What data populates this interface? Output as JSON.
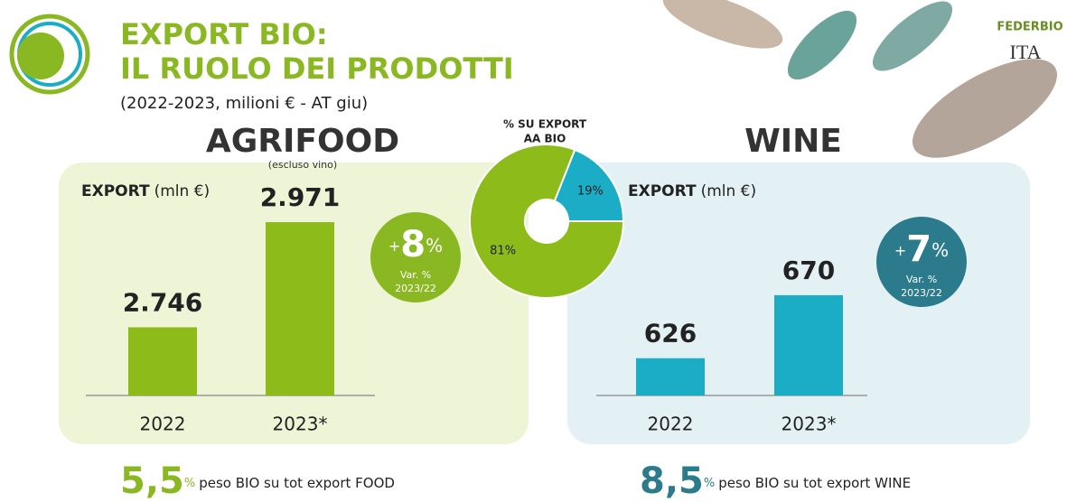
{
  "header": {
    "title_line1": "EXPORT BIO:",
    "title_line2": "IL RUOLO DEI PRODOTTI",
    "subtitle": "(2022-2023, milioni € - AT giu)",
    "logos": [
      "FEDERBIO",
      "ITA"
    ]
  },
  "chart_data": [
    {
      "type": "bar",
      "title": "AGRIFOOD",
      "subtitle": "(escluso vino)",
      "axis_label_bold": "EXPORT",
      "axis_label_unit": "(mln €)",
      "categories": [
        "2022",
        "2023*"
      ],
      "values": [
        2746,
        2971
      ],
      "value_labels": [
        "2.746",
        "2.971"
      ],
      "color": "#8cbb1a",
      "ylim": [
        2600,
        3060
      ],
      "change": {
        "sign": "+",
        "value": 8,
        "unit": "%",
        "label": "Var. %",
        "period": "2023/22",
        "color": "#8ab822"
      },
      "share": {
        "value": "5,5",
        "unit": "%",
        "text": "peso BIO su tot export FOOD",
        "color": "#8ab822"
      }
    },
    {
      "type": "pie",
      "title_line1": "% SU EXPORT",
      "title_line2": "AA BIO",
      "values": [
        81,
        19
      ],
      "value_labels": [
        "81%",
        "19%"
      ],
      "colors": [
        "#8cbb1a",
        "#1badc6"
      ]
    },
    {
      "type": "bar",
      "title": "WINE",
      "axis_label_bold": "EXPORT",
      "axis_label_unit": "(mln €)",
      "categories": [
        "2022",
        "2023*"
      ],
      "values": [
        626,
        670
      ],
      "value_labels": [
        "626",
        "670"
      ],
      "color": "#1badc6",
      "ylim": [
        600,
        750
      ],
      "change": {
        "sign": "+",
        "value": 7,
        "unit": "%",
        "label": "Var. %",
        "period": "2023/22",
        "color": "#2b7b8c"
      },
      "share": {
        "value": "8,5",
        "unit": "%",
        "text": "peso BIO su tot export WINE",
        "color": "#2b7b8c"
      }
    }
  ]
}
